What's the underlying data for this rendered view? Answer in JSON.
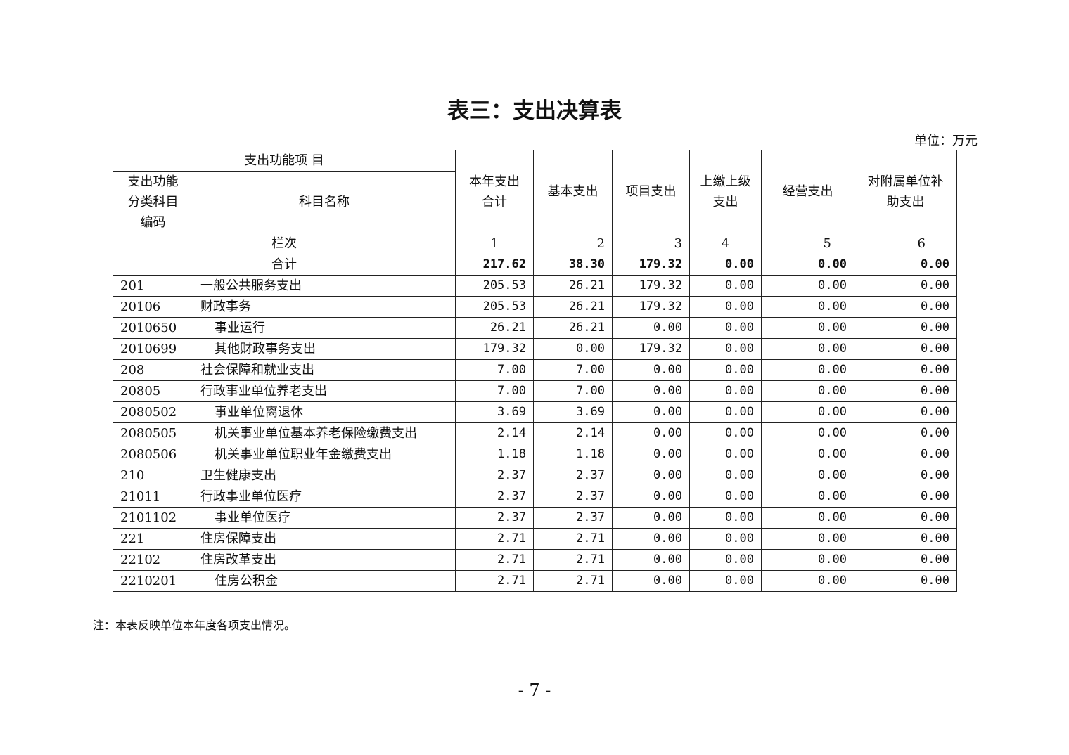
{
  "title": "表三：支出决算表",
  "unit": "单位：万元",
  "header": {
    "group": "支出功能项 目",
    "code": "支出功能分类科目编码",
    "name": "科目名称",
    "cols": [
      "本年支出合计",
      "基本支出",
      "项目支出",
      "上缴上级支出",
      "经营支出",
      "对附属单位补助支出"
    ],
    "row_label": "栏次",
    "col_numbers": [
      "1",
      "2",
      "3",
      "4",
      "5",
      "6"
    ]
  },
  "total": {
    "label": "合计",
    "values": [
      "217.62",
      "38.30",
      "179.32",
      "0.00",
      "0.00",
      "0.00"
    ]
  },
  "rows": [
    {
      "code": "201",
      "name": "一般公共服务支出",
      "indent": false,
      "values": [
        "205.53",
        "26.21",
        "179.32",
        "0.00",
        "0.00",
        "0.00"
      ]
    },
    {
      "code": "20106",
      "name": "财政事务",
      "indent": false,
      "values": [
        "205.53",
        "26.21",
        "179.32",
        "0.00",
        "0.00",
        "0.00"
      ]
    },
    {
      "code": "2010650",
      "name": "事业运行",
      "indent": true,
      "values": [
        "26.21",
        "26.21",
        "0.00",
        "0.00",
        "0.00",
        "0.00"
      ]
    },
    {
      "code": "2010699",
      "name": "其他财政事务支出",
      "indent": true,
      "values": [
        "179.32",
        "0.00",
        "179.32",
        "0.00",
        "0.00",
        "0.00"
      ]
    },
    {
      "code": "208",
      "name": "社会保障和就业支出",
      "indent": false,
      "values": [
        "7.00",
        "7.00",
        "0.00",
        "0.00",
        "0.00",
        "0.00"
      ]
    },
    {
      "code": "20805",
      "name": "行政事业单位养老支出",
      "indent": false,
      "values": [
        "7.00",
        "7.00",
        "0.00",
        "0.00",
        "0.00",
        "0.00"
      ]
    },
    {
      "code": "2080502",
      "name": "事业单位离退休",
      "indent": true,
      "values": [
        "3.69",
        "3.69",
        "0.00",
        "0.00",
        "0.00",
        "0.00"
      ]
    },
    {
      "code": "2080505",
      "name": "机关事业单位基本养老保险缴费支出",
      "indent": true,
      "values": [
        "2.14",
        "2.14",
        "0.00",
        "0.00",
        "0.00",
        "0.00"
      ]
    },
    {
      "code": "2080506",
      "name": "机关事业单位职业年金缴费支出",
      "indent": true,
      "values": [
        "1.18",
        "1.18",
        "0.00",
        "0.00",
        "0.00",
        "0.00"
      ]
    },
    {
      "code": "210",
      "name": "卫生健康支出",
      "indent": false,
      "values": [
        "2.37",
        "2.37",
        "0.00",
        "0.00",
        "0.00",
        "0.00"
      ]
    },
    {
      "code": "21011",
      "name": "行政事业单位医疗",
      "indent": false,
      "values": [
        "2.37",
        "2.37",
        "0.00",
        "0.00",
        "0.00",
        "0.00"
      ]
    },
    {
      "code": "2101102",
      "name": "事业单位医疗",
      "indent": true,
      "values": [
        "2.37",
        "2.37",
        "0.00",
        "0.00",
        "0.00",
        "0.00"
      ]
    },
    {
      "code": "221",
      "name": "住房保障支出",
      "indent": false,
      "values": [
        "2.71",
        "2.71",
        "0.00",
        "0.00",
        "0.00",
        "0.00"
      ]
    },
    {
      "code": "22102",
      "name": "住房改革支出",
      "indent": false,
      "values": [
        "2.71",
        "2.71",
        "0.00",
        "0.00",
        "0.00",
        "0.00"
      ]
    },
    {
      "code": "2210201",
      "name": "住房公积金",
      "indent": true,
      "values": [
        "2.71",
        "2.71",
        "0.00",
        "0.00",
        "0.00",
        "0.00"
      ]
    }
  ],
  "note": "注：本表反映单位本年度各项支出情况。",
  "page_number": "- 7 -"
}
